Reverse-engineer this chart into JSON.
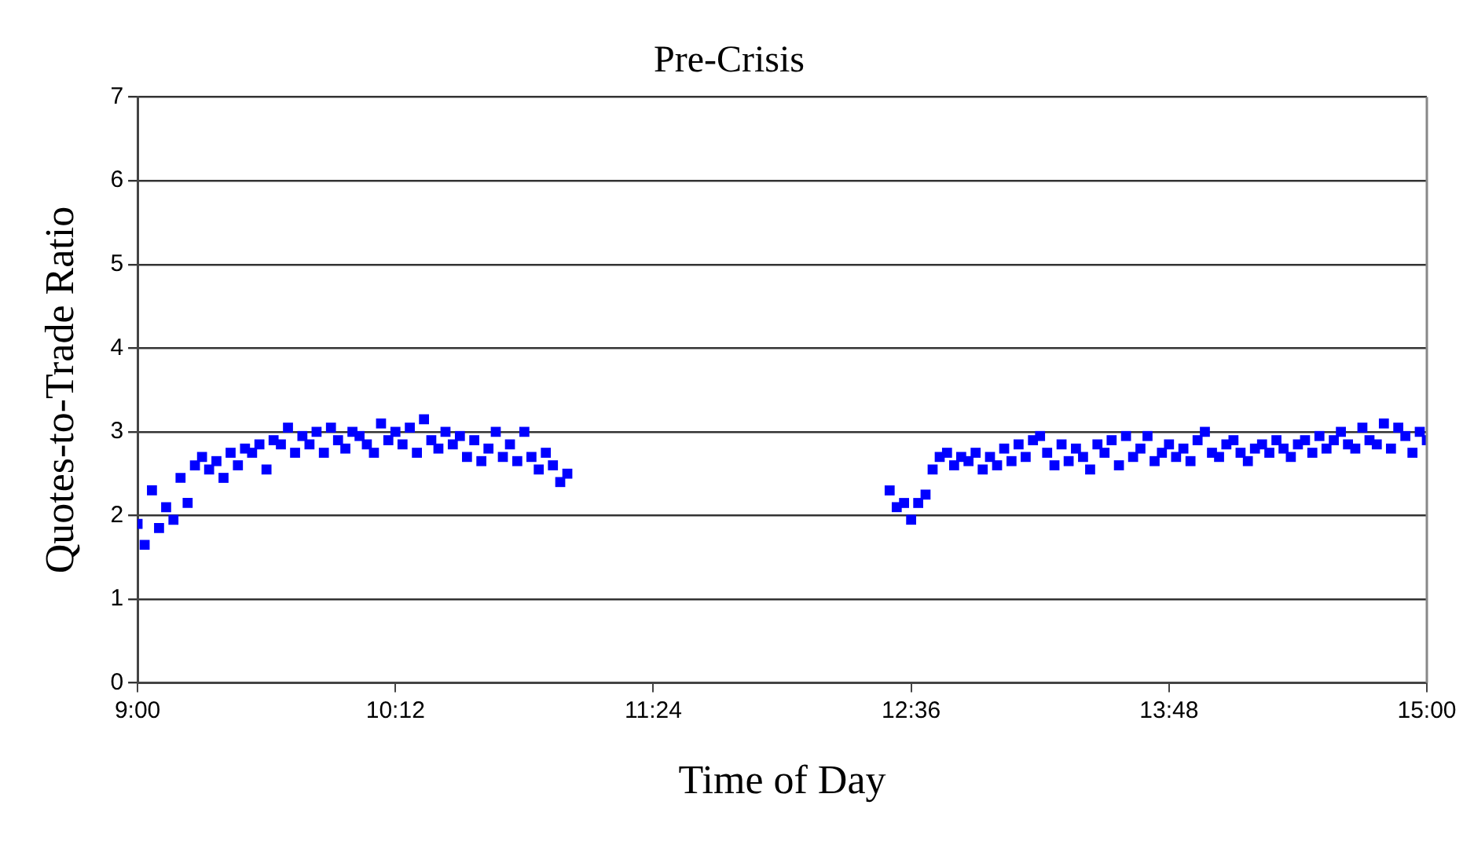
{
  "chart_data": {
    "type": "scatter",
    "title": "Pre-Crisis",
    "xlabel": "Time of Day",
    "ylabel": "Quotes-to-Trade Ratio",
    "x": [
      9,
      9.033,
      9.067,
      9.1,
      9.133,
      9.167,
      9.2,
      9.233,
      9.267,
      9.3,
      9.333,
      9.367,
      9.4,
      9.433,
      9.467,
      9.5,
      9.533,
      9.567,
      9.6,
      9.633,
      9.667,
      9.7,
      9.733,
      9.767,
      9.8,
      9.833,
      9.867,
      9.9,
      9.933,
      9.967,
      10,
      10.033,
      10.067,
      10.1,
      10.133,
      10.167,
      10.2,
      10.233,
      10.267,
      10.3,
      10.333,
      10.367,
      10.4,
      10.433,
      10.467,
      10.5,
      10.533,
      10.567,
      10.6,
      10.633,
      10.667,
      10.7,
      10.733,
      10.767,
      10.8,
      10.833,
      10.867,
      10.9,
      10.933,
      10.967,
      11,
      12.5,
      12.533,
      12.567,
      12.6,
      12.633,
      12.667,
      12.7,
      12.733,
      12.767,
      12.8,
      12.833,
      12.867,
      12.9,
      12.933,
      12.967,
      13,
      13.033,
      13.067,
      13.1,
      13.133,
      13.167,
      13.2,
      13.233,
      13.267,
      13.3,
      13.333,
      13.367,
      13.4,
      13.433,
      13.467,
      13.5,
      13.533,
      13.567,
      13.6,
      13.633,
      13.667,
      13.7,
      13.733,
      13.767,
      13.8,
      13.833,
      13.867,
      13.9,
      13.933,
      13.967,
      14,
      14.033,
      14.067,
      14.1,
      14.133,
      14.167,
      14.2,
      14.233,
      14.267,
      14.3,
      14.333,
      14.367,
      14.4,
      14.433,
      14.467,
      14.5,
      14.533,
      14.567,
      14.6,
      14.633,
      14.667,
      14.7,
      14.733,
      14.767,
      14.8,
      14.833,
      14.867,
      14.9,
      14.933,
      14.967,
      15
    ],
    "series": [
      {
        "color": "#0000ff",
        "values": [
          1.9,
          1.65,
          2.3,
          1.85,
          2.1,
          1.95,
          2.45,
          2.15,
          2.6,
          2.7,
          2.55,
          2.65,
          2.45,
          2.75,
          2.6,
          2.8,
          2.75,
          2.85,
          2.55,
          2.9,
          2.85,
          3.05,
          2.75,
          2.95,
          2.85,
          3.0,
          2.75,
          3.05,
          2.9,
          2.8,
          3.0,
          2.95,
          2.85,
          2.75,
          3.1,
          2.9,
          3.0,
          2.85,
          3.05,
          2.75,
          3.15,
          2.9,
          2.8,
          3.0,
          2.85,
          2.95,
          2.7,
          2.9,
          2.65,
          2.8,
          3.0,
          2.7,
          2.85,
          2.65,
          3.0,
          2.7,
          2.55,
          2.75,
          2.6,
          2.4,
          2.5,
          2.3,
          2.1,
          2.15,
          1.95,
          2.15,
          2.25,
          2.55,
          2.7,
          2.75,
          2.6,
          2.7,
          2.65,
          2.75,
          2.55,
          2.7,
          2.6,
          2.8,
          2.65,
          2.85,
          2.7,
          2.9,
          2.95,
          2.75,
          2.6,
          2.85,
          2.65,
          2.8,
          2.7,
          2.55,
          2.85,
          2.75,
          2.9,
          2.6,
          2.95,
          2.7,
          2.8,
          2.95,
          2.65,
          2.75,
          2.85,
          2.7,
          2.8,
          2.65,
          2.9,
          3.0,
          2.75,
          2.7,
          2.85,
          2.9,
          2.75,
          2.65,
          2.8,
          2.85,
          2.75,
          2.9,
          2.8,
          2.7,
          2.85,
          2.9,
          2.75,
          2.95,
          2.8,
          2.9,
          3.0,
          2.85,
          2.8,
          3.05,
          2.9,
          2.85,
          3.1,
          2.8,
          3.05,
          2.95,
          2.75,
          3.0,
          2.9
        ]
      }
    ],
    "xlim": [
      9,
      15
    ],
    "xticks": [
      {
        "value": 9,
        "label": "9:00"
      },
      {
        "value": 10.2,
        "label": "10:12"
      },
      {
        "value": 11.4,
        "label": "11:24"
      },
      {
        "value": 12.6,
        "label": "12:36"
      },
      {
        "value": 13.8,
        "label": "13:48"
      },
      {
        "value": 15,
        "label": "15:00"
      }
    ],
    "ylim": [
      0,
      7
    ],
    "yticks": [
      0,
      1,
      2,
      3,
      4,
      5,
      6,
      7
    ],
    "grid": "y",
    "legend": false,
    "marker": "square"
  }
}
